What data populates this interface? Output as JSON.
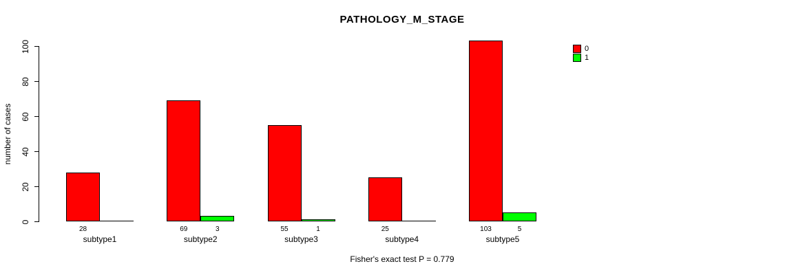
{
  "title": "PATHOLOGY_M_STAGE",
  "footer": "Fisher's exact test P = 0.779",
  "legend": {
    "items": [
      {
        "label": "0",
        "color": "#ff0000"
      },
      {
        "label": "1",
        "color": "#00ff00"
      }
    ]
  },
  "chart_data": {
    "type": "bar",
    "title": "PATHOLOGY_M_STAGE",
    "xlabel": "",
    "ylabel": "number of cases",
    "categories": [
      "subtype1",
      "subtype2",
      "subtype3",
      "subtype4",
      "subtype5"
    ],
    "series": [
      {
        "name": "0",
        "color": "#ff0000",
        "values": [
          28,
          69,
          55,
          25,
          103
        ],
        "bar_labels": [
          "28",
          "69",
          "55",
          "25",
          "103"
        ]
      },
      {
        "name": "1",
        "color": "#00ff00",
        "values": [
          0,
          3,
          1,
          0,
          5
        ],
        "bar_labels": [
          "",
          "3",
          "1",
          "",
          "5"
        ]
      }
    ],
    "ylim": [
      0,
      100
    ],
    "yticks": [
      0,
      20,
      40,
      60,
      80,
      100
    ],
    "grid": false,
    "legend_position": "right",
    "annotation": "Fisher's exact test P = 0.779"
  }
}
